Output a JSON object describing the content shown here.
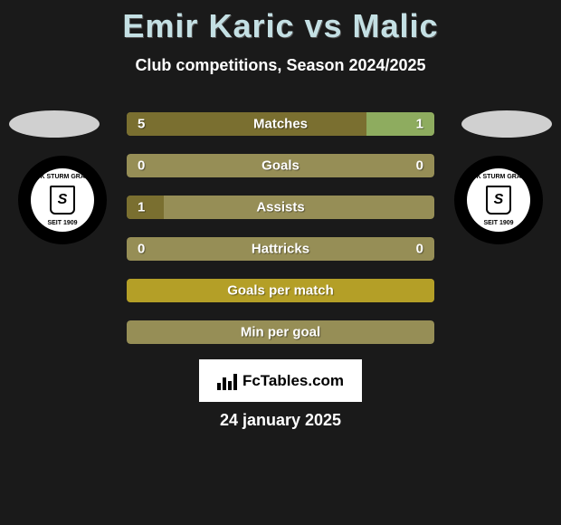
{
  "title": "Emir Karic vs Malic",
  "subtitle": "Club competitions, Season 2024/2025",
  "colors": {
    "title_color": "#c4e0e4",
    "background": "#1a1a1a",
    "bar_empty": "#968e56",
    "bar_dark": "#7a6f30",
    "bar_yellow": "#b49f27",
    "bar_right_accent": "#8eac5f",
    "badge_bg": "#ffffff",
    "oval_bg": "#d0d0d0"
  },
  "club_logo": {
    "top_text": "SK STURM GRAZ",
    "bottom_text": "SEIT 1909",
    "letter": "S"
  },
  "stats": [
    {
      "label": "Matches",
      "left_value": "5",
      "right_value": "1",
      "left_pct": 78,
      "right_pct": 22,
      "left_color": "#7a6f30",
      "right_color": "#8eac5f",
      "bg_color": "#968e56",
      "show_values": true
    },
    {
      "label": "Goals",
      "left_value": "0",
      "right_value": "0",
      "left_pct": 0,
      "right_pct": 0,
      "left_color": "#7a6f30",
      "right_color": "#8eac5f",
      "bg_color": "#968e56",
      "show_values": true
    },
    {
      "label": "Assists",
      "left_value": "1",
      "right_value": "",
      "left_pct": 12,
      "right_pct": 0,
      "left_color": "#7a6f30",
      "right_color": "#8eac5f",
      "bg_color": "#968e56",
      "show_values": true
    },
    {
      "label": "Hattricks",
      "left_value": "0",
      "right_value": "0",
      "left_pct": 0,
      "right_pct": 0,
      "left_color": "#7a6f30",
      "right_color": "#8eac5f",
      "bg_color": "#968e56",
      "show_values": true
    },
    {
      "label": "Goals per match",
      "left_value": "",
      "right_value": "",
      "left_pct": 100,
      "right_pct": 0,
      "left_color": "#b49f27",
      "right_color": "#8eac5f",
      "bg_color": "#b49f27",
      "show_values": false
    },
    {
      "label": "Min per goal",
      "left_value": "",
      "right_value": "",
      "left_pct": 0,
      "right_pct": 0,
      "left_color": "#7a6f30",
      "right_color": "#8eac5f",
      "bg_color": "#968e56",
      "show_values": false
    }
  ],
  "badge": {
    "text": "FcTables.com",
    "icon_bars": [
      8,
      14,
      10,
      18
    ]
  },
  "date": "24 january 2025"
}
